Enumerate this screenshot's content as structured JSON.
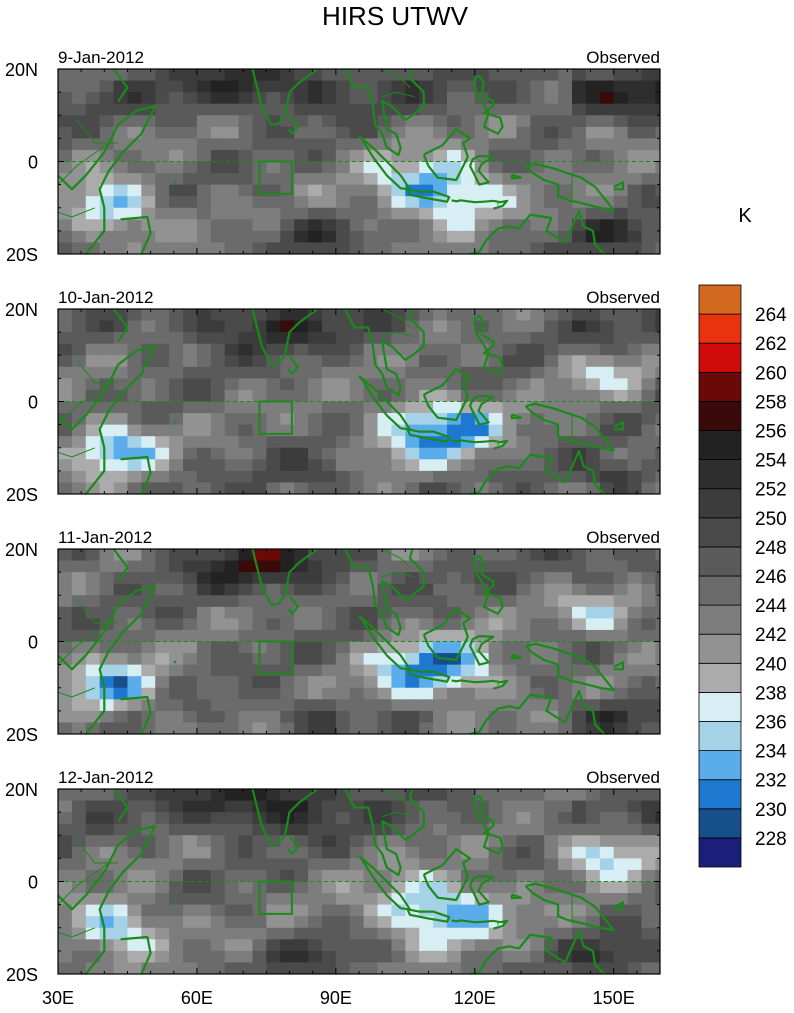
{
  "chart_data": {
    "type": "heatmap",
    "title": "HIRS UTWV",
    "units": "K",
    "x_ticks": [
      "30E",
      "60E",
      "90E",
      "120E",
      "150E"
    ],
    "x_tick_values": [
      30,
      60,
      90,
      120,
      150
    ],
    "x_range": [
      30,
      160
    ],
    "y_ticks": [
      "20N",
      "0",
      "20S"
    ],
    "y_tick_values": [
      20,
      0,
      -20
    ],
    "y_range": [
      -20,
      20
    ],
    "panels": [
      {
        "date": "9-Jan-2012",
        "label": "Observed"
      },
      {
        "date": "10-Jan-2012",
        "label": "Observed"
      },
      {
        "date": "11-Jan-2012",
        "label": "Observed"
      },
      {
        "date": "12-Jan-2012",
        "label": "Observed"
      }
    ],
    "colorbar": {
      "labels": [
        "228",
        "230",
        "232",
        "234",
        "236",
        "238",
        "240",
        "242",
        "244",
        "246",
        "248",
        "250",
        "252",
        "254",
        "256",
        "258",
        "260",
        "262",
        "264"
      ],
      "colors": [
        "#1b1f7a",
        "#164f8c",
        "#1f78d0",
        "#5aaceb",
        "#a6d2e8",
        "#d7eff4",
        "#ababab",
        "#929292",
        "#7d7d7d",
        "#6b6b6b",
        "#5a5a5a",
        "#4a4a4a",
        "#3c3c3c",
        "#2e2e2e",
        "#222222",
        "#3a0a0a",
        "#6b0808",
        "#d00b0b",
        "#e8330e",
        "#d2691f"
      ]
    },
    "box_region": {
      "lon": [
        73.5,
        80.5
      ],
      "lat": [
        -7,
        0
      ]
    }
  }
}
